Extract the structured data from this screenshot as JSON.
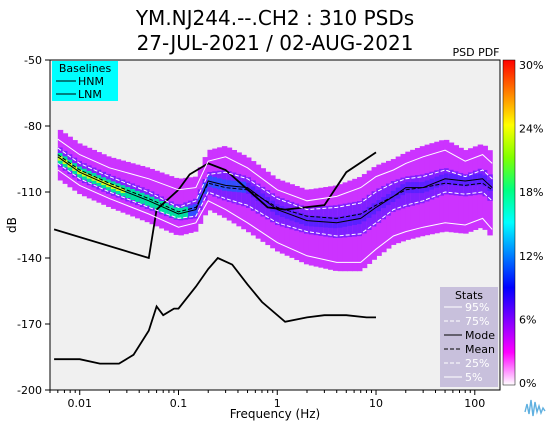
{
  "chart_data": {
    "type": "heatmap",
    "title_line1": "YM.NJ244.--.CH2 : 310 PSDs",
    "title_line2": "27-JUL-2021 / 02-AUG-2021",
    "xlabel": "Frequency (Hz)",
    "ylabel": "dB",
    "x_scale": "log",
    "xlim": [
      0.005,
      180
    ],
    "ylim": [
      -200,
      -50
    ],
    "xticks": [
      {
        "value": 0.01,
        "label": "0.01"
      },
      {
        "value": 0.1,
        "label": "0.1"
      },
      {
        "value": 1,
        "label": "1"
      },
      {
        "value": 10,
        "label": "10"
      },
      {
        "value": 100,
        "label": "100"
      }
    ],
    "yticks": [
      {
        "value": -50,
        "label": "-50"
      },
      {
        "value": -80,
        "label": "-80"
      },
      {
        "value": -110,
        "label": "-110"
      },
      {
        "value": -140,
        "label": "-140"
      },
      {
        "value": -170,
        "label": "-170"
      },
      {
        "value": -200,
        "label": "-200"
      }
    ],
    "colorbar": {
      "label": "PSD PDF",
      "ticks": [
        "30%",
        "24%",
        "18%",
        "12%",
        "6%",
        "0%"
      ],
      "colors": [
        "#ff0000",
        "#ff8000",
        "#ffff00",
        "#80ff00",
        "#00ff80",
        "#00ffff",
        "#0080ff",
        "#0000ff",
        "#8000ff",
        "#ff00ff",
        "#ffffff"
      ]
    },
    "baselines_legend": {
      "title": "Baselines",
      "items": [
        "HNM",
        "LNM"
      ],
      "bg_color": "#00ffff"
    },
    "stats_legend": {
      "title": "Stats",
      "items": [
        "95%",
        "75%",
        "Mode",
        "Mean",
        "25%",
        "5%"
      ],
      "bg_color": "#c8c0dc"
    },
    "series": [
      {
        "name": "HNM",
        "color": "#000000",
        "x": [
          0.0055,
          0.05,
          0.06,
          0.1,
          0.13,
          0.2,
          0.3,
          0.8,
          1.2,
          3,
          5,
          10
        ],
        "y": [
          -127,
          -140,
          -118,
          -109,
          -102,
          -97,
          -100,
          -117,
          -118,
          -116,
          -101,
          -92
        ]
      },
      {
        "name": "LNM",
        "color": "#000000",
        "x": [
          0.0055,
          0.01,
          0.016,
          0.025,
          0.035,
          0.05,
          0.06,
          0.07,
          0.09,
          0.1,
          0.15,
          0.2,
          0.25,
          0.35,
          0.5,
          0.7,
          1.2,
          2,
          3,
          5,
          8,
          10
        ],
        "y": [
          -186,
          -186,
          -188,
          -188,
          -184,
          -173,
          -162,
          -166,
          -163,
          -163,
          -153,
          -145,
          -140,
          -143,
          -152,
          -160,
          -169,
          -167,
          -166,
          -166,
          -167,
          -167
        ]
      },
      {
        "name": "95%",
        "color": "#ffffff",
        "x": [
          0.006,
          0.01,
          0.02,
          0.05,
          0.1,
          0.15,
          0.2,
          0.3,
          0.5,
          1,
          2,
          4,
          7,
          10,
          15,
          20,
          30,
          50,
          80,
          120,
          150
        ],
        "y": [
          -86,
          -93,
          -99,
          -104,
          -109,
          -108,
          -96,
          -94,
          -99,
          -109,
          -114,
          -112,
          -108,
          -103,
          -100,
          -97,
          -94,
          -91,
          -96,
          -93,
          -97
        ]
      },
      {
        "name": "75%",
        "color": "#ffffff",
        "x": [
          0.006,
          0.01,
          0.02,
          0.05,
          0.1,
          0.15,
          0.2,
          0.3,
          0.5,
          1,
          2,
          4,
          7,
          10,
          15,
          20,
          30,
          50,
          80,
          120,
          150
        ],
        "y": [
          -90,
          -97,
          -103,
          -110,
          -117,
          -114,
          -102,
          -101,
          -104,
          -113,
          -118,
          -117,
          -115,
          -110,
          -106,
          -104,
          -103,
          -100,
          -103,
          -100,
          -104
        ]
      },
      {
        "name": "Mode",
        "color": "#000000",
        "x": [
          0.006,
          0.01,
          0.02,
          0.05,
          0.1,
          0.15,
          0.2,
          0.3,
          0.5,
          1,
          2,
          4,
          7,
          10,
          15,
          20,
          30,
          50,
          80,
          120,
          150
        ],
        "y": [
          -94,
          -101,
          -107,
          -114,
          -120,
          -118,
          -105,
          -107,
          -108,
          -118,
          -123,
          -124,
          -122,
          -117,
          -112,
          -108,
          -108,
          -104,
          -105,
          -104,
          -108
        ]
      },
      {
        "name": "Mean",
        "color": "#000000",
        "x": [
          0.006,
          0.01,
          0.02,
          0.05,
          0.1,
          0.15,
          0.2,
          0.3,
          0.5,
          1,
          2,
          4,
          7,
          10,
          15,
          20,
          30,
          50,
          80,
          120,
          150
        ],
        "y": [
          -93,
          -100,
          -106,
          -113,
          -119,
          -117,
          -106,
          -108,
          -109,
          -117,
          -121,
          -122,
          -120,
          -116,
          -112,
          -109,
          -108,
          -106,
          -107,
          -106,
          -109
        ]
      },
      {
        "name": "25%",
        "color": "#ffffff",
        "x": [
          0.006,
          0.01,
          0.02,
          0.05,
          0.1,
          0.15,
          0.2,
          0.3,
          0.5,
          1,
          2,
          4,
          7,
          10,
          15,
          20,
          30,
          50,
          80,
          120,
          150
        ],
        "y": [
          -97,
          -104,
          -110,
          -117,
          -122,
          -121,
          -110,
          -113,
          -116,
          -124,
          -128,
          -130,
          -129,
          -124,
          -118,
          -116,
          -114,
          -110,
          -111,
          -110,
          -114
        ]
      },
      {
        "name": "5%",
        "color": "#ffffff",
        "x": [
          0.006,
          0.01,
          0.02,
          0.05,
          0.1,
          0.15,
          0.2,
          0.3,
          0.5,
          1,
          2,
          4,
          7,
          10,
          15,
          20,
          30,
          50,
          80,
          120,
          150
        ],
        "y": [
          -100,
          -107,
          -113,
          -120,
          -126,
          -124,
          -114,
          -118,
          -124,
          -133,
          -139,
          -142,
          -142,
          -136,
          -130,
          -128,
          -126,
          -124,
          -125,
          -122,
          -127
        ]
      }
    ]
  }
}
